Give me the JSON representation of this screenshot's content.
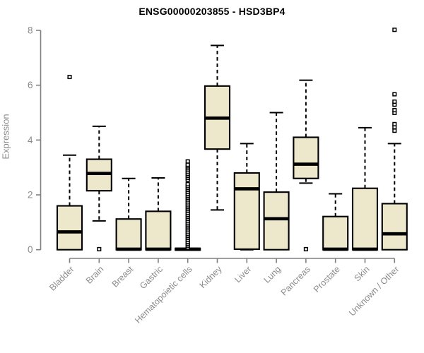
{
  "figure": {
    "title": "ENSG00000203855 - HSD3BP4",
    "background": "#ffffff"
  },
  "colors": {
    "box_fill": "#EDE7CC",
    "box_stroke": "#000000",
    "median": "#000000",
    "whisker": "#000000",
    "outlier_fill": "#ffffff",
    "outlier_stroke": "#000000",
    "axis": "#808080",
    "tick_label": "#8b8b8b",
    "title": "#000000"
  },
  "chart_data": {
    "type": "box",
    "title": "ENSG00000203855 - HSD3BP4",
    "xlabel": "",
    "ylabel": "Expression",
    "ylim": [
      0,
      8
    ],
    "yticks": [
      0,
      2,
      4,
      6,
      8
    ],
    "grid": false,
    "legend": "none",
    "categories": [
      "Bladder",
      "Brain",
      "Breast",
      "Gastric",
      "Hematopoietic cells",
      "Kidney",
      "Liver",
      "Lung",
      "Pancreas",
      "Prostate",
      "Skin",
      "Unknown / Other"
    ],
    "boxes": [
      {
        "category": "Bladder",
        "whisker_low": 0,
        "q1": 0,
        "median": 0.65,
        "q3": 1.6,
        "whisker_high": 3.45,
        "outliers": [
          6.3
        ]
      },
      {
        "category": "Brain",
        "whisker_low": 1.05,
        "q1": 2.15,
        "median": 2.78,
        "q3": 3.3,
        "whisker_high": 4.5,
        "outliers": [
          0.02
        ]
      },
      {
        "category": "Breast",
        "whisker_low": 0,
        "q1": 0,
        "median": 0.02,
        "q3": 1.12,
        "whisker_high": 2.6,
        "outliers": []
      },
      {
        "category": "Gastric",
        "whisker_low": 0,
        "q1": 0,
        "median": 0.02,
        "q3": 1.4,
        "whisker_high": 2.62,
        "outliers": []
      },
      {
        "category": "Hematopoietic cells",
        "whisker_low": 0,
        "q1": 0,
        "median": 0.02,
        "q3": 0.05,
        "whisker_high": 0.06,
        "outliers": [
          0.08,
          0.15,
          0.22,
          0.29,
          0.36,
          0.43,
          0.5,
          0.57,
          0.64,
          0.71,
          0.78,
          0.85,
          0.92,
          0.99,
          1.06,
          1.13,
          1.2,
          1.27,
          1.34,
          1.41,
          1.48,
          1.55,
          1.62,
          1.69,
          1.76,
          1.83,
          1.9,
          1.97,
          2.04,
          2.11,
          2.18,
          2.25,
          2.32,
          2.39,
          2.55,
          2.62,
          2.69,
          2.76,
          2.83,
          2.9,
          2.97,
          3.04,
          3.1,
          3.22
        ]
      },
      {
        "category": "Kidney",
        "whisker_low": 1.45,
        "q1": 3.67,
        "median": 4.8,
        "q3": 5.97,
        "whisker_high": 7.45,
        "outliers": []
      },
      {
        "category": "Liver",
        "whisker_low": 0,
        "q1": 0.02,
        "median": 2.22,
        "q3": 2.8,
        "whisker_high": 3.87,
        "outliers": []
      },
      {
        "category": "Lung",
        "whisker_low": 0,
        "q1": 0,
        "median": 1.13,
        "q3": 2.1,
        "whisker_high": 5.0,
        "outliers": []
      },
      {
        "category": "Pancreas",
        "whisker_low": 2.43,
        "q1": 2.6,
        "median": 3.12,
        "q3": 4.1,
        "whisker_high": 6.18,
        "outliers": [
          0.02
        ]
      },
      {
        "category": "Prostate",
        "whisker_low": 0,
        "q1": 0,
        "median": 0.02,
        "q3": 1.21,
        "whisker_high": 2.04,
        "outliers": []
      },
      {
        "category": "Skin",
        "whisker_low": 0,
        "q1": 0,
        "median": 0.02,
        "q3": 2.24,
        "whisker_high": 4.45,
        "outliers": []
      },
      {
        "category": "Unknown / Other",
        "whisker_low": 0,
        "q1": 0,
        "median": 0.58,
        "q3": 1.68,
        "whisker_high": 3.87,
        "outliers": [
          4.34,
          4.47,
          4.58,
          4.99,
          5.09,
          5.29,
          5.4,
          5.67,
          8.02
        ]
      }
    ]
  }
}
